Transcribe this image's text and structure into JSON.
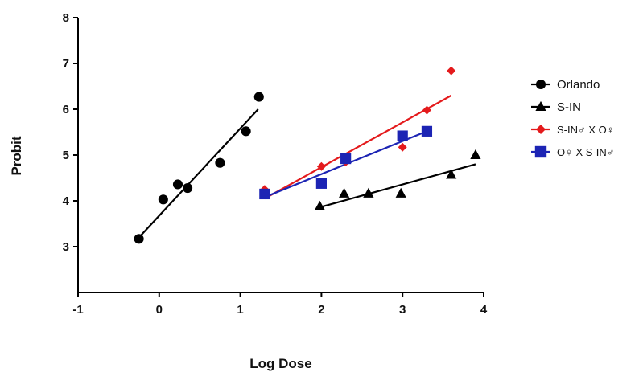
{
  "chart_data": {
    "type": "scatter",
    "title": "",
    "xlabel": "Log Dose",
    "ylabel": "Probit",
    "xlim": [
      -1,
      4
    ],
    "ylim": [
      2,
      8
    ],
    "x_ticks": [
      "-1",
      "0",
      "1",
      "2",
      "3",
      "4"
    ],
    "y_ticks": [
      "3",
      "4",
      "5",
      "6",
      "7",
      "8"
    ],
    "grid": false,
    "legend_position": "right",
    "series": [
      {
        "name": "Orlando",
        "marker": "circle",
        "color": "#000000",
        "x": [
          -0.25,
          0.05,
          0.23,
          0.35,
          0.75,
          1.07,
          1.23
        ],
        "y": [
          3.17,
          4.03,
          4.36,
          4.28,
          4.83,
          5.52,
          6.27
        ],
        "fit": [
          [
            -0.25,
            3.2
          ],
          [
            1.22,
            6.0
          ]
        ]
      },
      {
        "name": "S-IN",
        "marker": "triangle",
        "color": "#000000",
        "x": [
          1.98,
          2.28,
          2.58,
          2.98,
          3.6,
          3.9
        ],
        "y": [
          3.88,
          4.16,
          4.16,
          4.16,
          4.57,
          5.0
        ],
        "fit": [
          [
            1.98,
            3.86
          ],
          [
            3.9,
            4.8
          ]
        ]
      },
      {
        "name": "S-IN♂ X O♀",
        "marker": "diamond",
        "color": "#e41a1c",
        "x": [
          1.3,
          2.0,
          2.3,
          3.0,
          3.3,
          3.6
        ],
        "y": [
          4.25,
          4.75,
          4.85,
          5.17,
          5.98,
          6.84
        ],
        "fit": [
          [
            1.3,
            4.05
          ],
          [
            3.6,
            6.3
          ]
        ]
      },
      {
        "name": "O♀ X S-IN♂",
        "marker": "square",
        "color": "#1c24b4",
        "x": [
          1.3,
          2.0,
          2.3,
          3.0,
          3.3
        ],
        "y": [
          4.15,
          4.38,
          4.92,
          5.42,
          5.52
        ],
        "fit": [
          [
            1.3,
            4.08
          ],
          [
            3.3,
            5.52
          ]
        ]
      }
    ]
  }
}
